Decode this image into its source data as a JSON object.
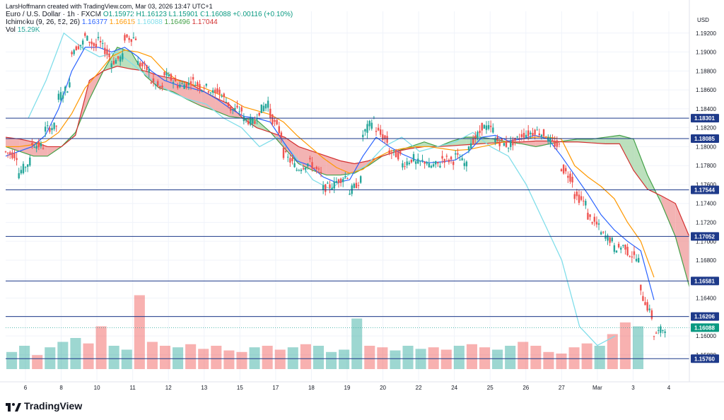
{
  "header": {
    "created_by": "LarsHoffmann created with TradingView.com, Mar 03, 2026 13:47 UTC+1",
    "symbol": "Euro / U.S. Dollar · 1h · FXCM",
    "ohlc": "O1.15972 H1.16123 L1.15901 C1.16088 +0.00116 (+0.10%)",
    "ichimoku_label": "Ichimoku (9, 26, 52, 26)",
    "ichimoku_values": [
      "1.16377",
      "1.16615",
      "1.16088",
      "1.16496",
      "1.17044"
    ],
    "vol_label": "Vol",
    "vol_value": "15.29K"
  },
  "colors": {
    "up": "#26a69a",
    "down": "#ef5350",
    "tenkan": "#2962ff",
    "kijun": "#ff9800",
    "chikou": "#80deea",
    "spanA": "#43a047",
    "spanB": "#d32f2f",
    "cloud_bull": "#a5d6a7",
    "cloud_bear": "#ef9a9a",
    "hline": "#1e3a8a"
  },
  "footer": {
    "brand": "TradingView"
  },
  "chart_data": {
    "type": "candlestick",
    "currency": "USD",
    "y_ticks": [
      "1.19200",
      "1.19000",
      "1.18800",
      "1.18600",
      "1.18400",
      "1.18200",
      "1.18000",
      "1.17800",
      "1.17600",
      "1.17400",
      "1.17200",
      "1.17000",
      "1.16800",
      "1.16600",
      "1.16400",
      "1.16200",
      "1.16000",
      "1.15800"
    ],
    "ylim": [
      1.1565,
      1.1943
    ],
    "x_ticks": [
      "6",
      "8",
      "10",
      "11",
      "12",
      "13",
      "15",
      "17",
      "18",
      "19",
      "20",
      "22",
      "24",
      "25",
      "26",
      "27",
      "Mar",
      "3",
      "4"
    ],
    "horizontal_levels": [
      "1.18301",
      "1.18085",
      "1.17544",
      "1.17052",
      "1.16581",
      "1.16206",
      "1.15760"
    ],
    "last_price": "1.16088",
    "price_path": [
      [
        1.1795,
        1.179
      ],
      [
        1.177,
        1.1785
      ],
      [
        1.1803,
        1.18
      ],
      [
        1.1818,
        1.1822
      ],
      [
        1.185,
        1.1865
      ],
      [
        1.19,
        1.191
      ],
      [
        1.1918,
        1.1905
      ],
      [
        1.1915,
        1.1895
      ],
      [
        1.1888,
        1.1895
      ],
      [
        1.1915,
        1.1915
      ],
      [
        1.189,
        1.188
      ],
      [
        1.187,
        1.186
      ],
      [
        1.1878,
        1.1868
      ],
      [
        1.1865,
        1.1866
      ],
      [
        1.1872,
        1.1862
      ],
      [
        1.1866,
        1.1855
      ],
      [
        1.1862,
        1.1845
      ],
      [
        1.184,
        1.1838
      ],
      [
        1.183,
        1.1825
      ],
      [
        1.1832,
        1.1848
      ],
      [
        1.1836,
        1.1812
      ],
      [
        1.1795,
        1.178
      ],
      [
        1.1775,
        1.1782
      ],
      [
        1.1785,
        1.177
      ],
      [
        1.1755,
        1.176
      ],
      [
        1.1762,
        1.177
      ],
      [
        1.175,
        1.1765
      ],
      [
        1.181,
        1.183
      ],
      [
        1.182,
        1.1805
      ],
      [
        1.1795,
        1.179
      ],
      [
        1.178,
        1.1788
      ],
      [
        1.1782,
        1.1785
      ],
      [
        1.1778,
        1.1782
      ],
      [
        1.1788,
        1.1785
      ],
      [
        1.1792,
        1.178
      ],
      [
        1.18,
        1.1815
      ],
      [
        1.1822,
        1.1818
      ],
      [
        1.1808,
        1.1802
      ],
      [
        1.18,
        1.181
      ],
      [
        1.1812,
        1.1815
      ],
      [
        1.1818,
        1.1812
      ],
      [
        1.1808,
        1.18
      ],
      [
        1.178,
        1.1765
      ],
      [
        1.175,
        1.174
      ],
      [
        1.1728,
        1.1715
      ],
      [
        1.171,
        1.17
      ],
      [
        1.1692,
        1.1695
      ],
      [
        1.169,
        1.168
      ],
      [
        1.165,
        1.162
      ],
      [
        1.16,
        1.1609
      ]
    ],
    "tenkan": [
      1.179,
      1.1795,
      1.18,
      1.1812,
      1.184,
      1.188,
      1.1905,
      1.1905,
      1.19,
      1.1905,
      1.1895,
      1.188,
      1.187,
      1.1865,
      1.1862,
      1.1858,
      1.185,
      1.184,
      1.1832,
      1.183,
      1.1826,
      1.1805,
      1.1785,
      1.178,
      1.1768,
      1.1762,
      1.1765,
      1.179,
      1.181,
      1.18,
      1.1792,
      1.1786,
      1.1783,
      1.1784,
      1.1786,
      1.1795,
      1.181,
      1.1812,
      1.1806,
      1.1808,
      1.1812,
      1.1808,
      1.179,
      1.177,
      1.175,
      1.1728,
      1.1712,
      1.17,
      1.169,
      1.1638
    ],
    "kijun": [
      1.18,
      1.18,
      1.1802,
      1.1805,
      1.1815,
      1.1835,
      1.1862,
      1.1878,
      1.1895,
      1.1902,
      1.19,
      1.1895,
      1.188,
      1.187,
      1.1866,
      1.1862,
      1.1856,
      1.185,
      1.1842,
      1.1838,
      1.1834,
      1.1826,
      1.1812,
      1.18,
      1.1788,
      1.1778,
      1.1772,
      1.1776,
      1.1788,
      1.1795,
      1.1798,
      1.18,
      1.18,
      1.1798,
      1.1796,
      1.1797,
      1.18,
      1.1803,
      1.1806,
      1.1808,
      1.181,
      1.181,
      1.1808,
      1.178,
      1.1768,
      1.1758,
      1.1745,
      1.172,
      1.17,
      1.1662
    ],
    "chikou": [
      1.183,
      1.187,
      1.192,
      1.1905,
      1.1895,
      1.19,
      1.1885,
      1.187,
      1.1858,
      1.185,
      1.1845,
      1.183,
      1.182,
      1.18,
      1.181,
      1.179,
      1.1765,
      1.1755,
      1.177,
      1.178,
      1.18,
      1.181,
      1.1795,
      1.18,
      1.1805,
      1.1815,
      1.18,
      1.179,
      1.176,
      1.172,
      1.168,
      1.161,
      1.159,
      1.16
    ],
    "span_a": [
      1.18,
      1.1795,
      1.179,
      1.179,
      1.18,
      1.1815,
      1.185,
      1.188,
      1.1905,
      1.19,
      1.1875,
      1.1862,
      1.1858,
      1.185,
      1.1843,
      1.1838,
      1.1832,
      1.183,
      1.1828,
      1.1815,
      1.1798,
      1.1782,
      1.1775,
      1.177,
      1.177,
      1.1772,
      1.178,
      1.179,
      1.1795,
      1.18,
      1.1805,
      1.18,
      1.1806,
      1.181,
      1.181,
      1.1808,
      1.1805,
      1.1803,
      1.18,
      1.1803,
      1.1806,
      1.1808,
      1.1808,
      1.181,
      1.1812,
      1.1808,
      1.177,
      1.174,
      1.1705,
      1.1652
    ],
    "span_b": [
      1.181,
      1.1808,
      1.1805,
      1.18,
      1.18,
      1.1812,
      1.187,
      1.188,
      1.1885,
      1.1882,
      1.188,
      1.1875,
      1.1872,
      1.1868,
      1.186,
      1.1852,
      1.1845,
      1.183,
      1.182,
      1.1815,
      1.181,
      1.18,
      1.1795,
      1.179,
      1.1785,
      1.1782,
      1.1785,
      1.179,
      1.1795,
      1.1798,
      1.18,
      1.18,
      1.1801,
      1.1802,
      1.1803,
      1.1804,
      1.1805,
      1.1805,
      1.1806,
      1.1806,
      1.1805,
      1.1805,
      1.1804,
      1.1803,
      1.1803,
      1.1775,
      1.1755,
      1.1748,
      1.174,
      1.1705
    ],
    "volume": [
      0.22,
      0.3,
      0.18,
      0.28,
      0.35,
      0.4,
      0.33,
      0.55,
      0.3,
      0.25,
      0.95,
      0.35,
      0.3,
      0.28,
      0.32,
      0.26,
      0.3,
      0.24,
      0.22,
      0.28,
      0.3,
      0.25,
      0.28,
      0.32,
      0.3,
      0.22,
      0.25,
      0.65,
      0.3,
      0.28,
      0.24,
      0.3,
      0.26,
      0.28,
      0.25,
      0.3,
      0.32,
      0.28,
      0.25,
      0.3,
      0.35,
      0.3,
      0.22,
      0.2,
      0.28,
      0.33,
      0.3,
      0.45,
      0.6,
      0.55
    ]
  }
}
